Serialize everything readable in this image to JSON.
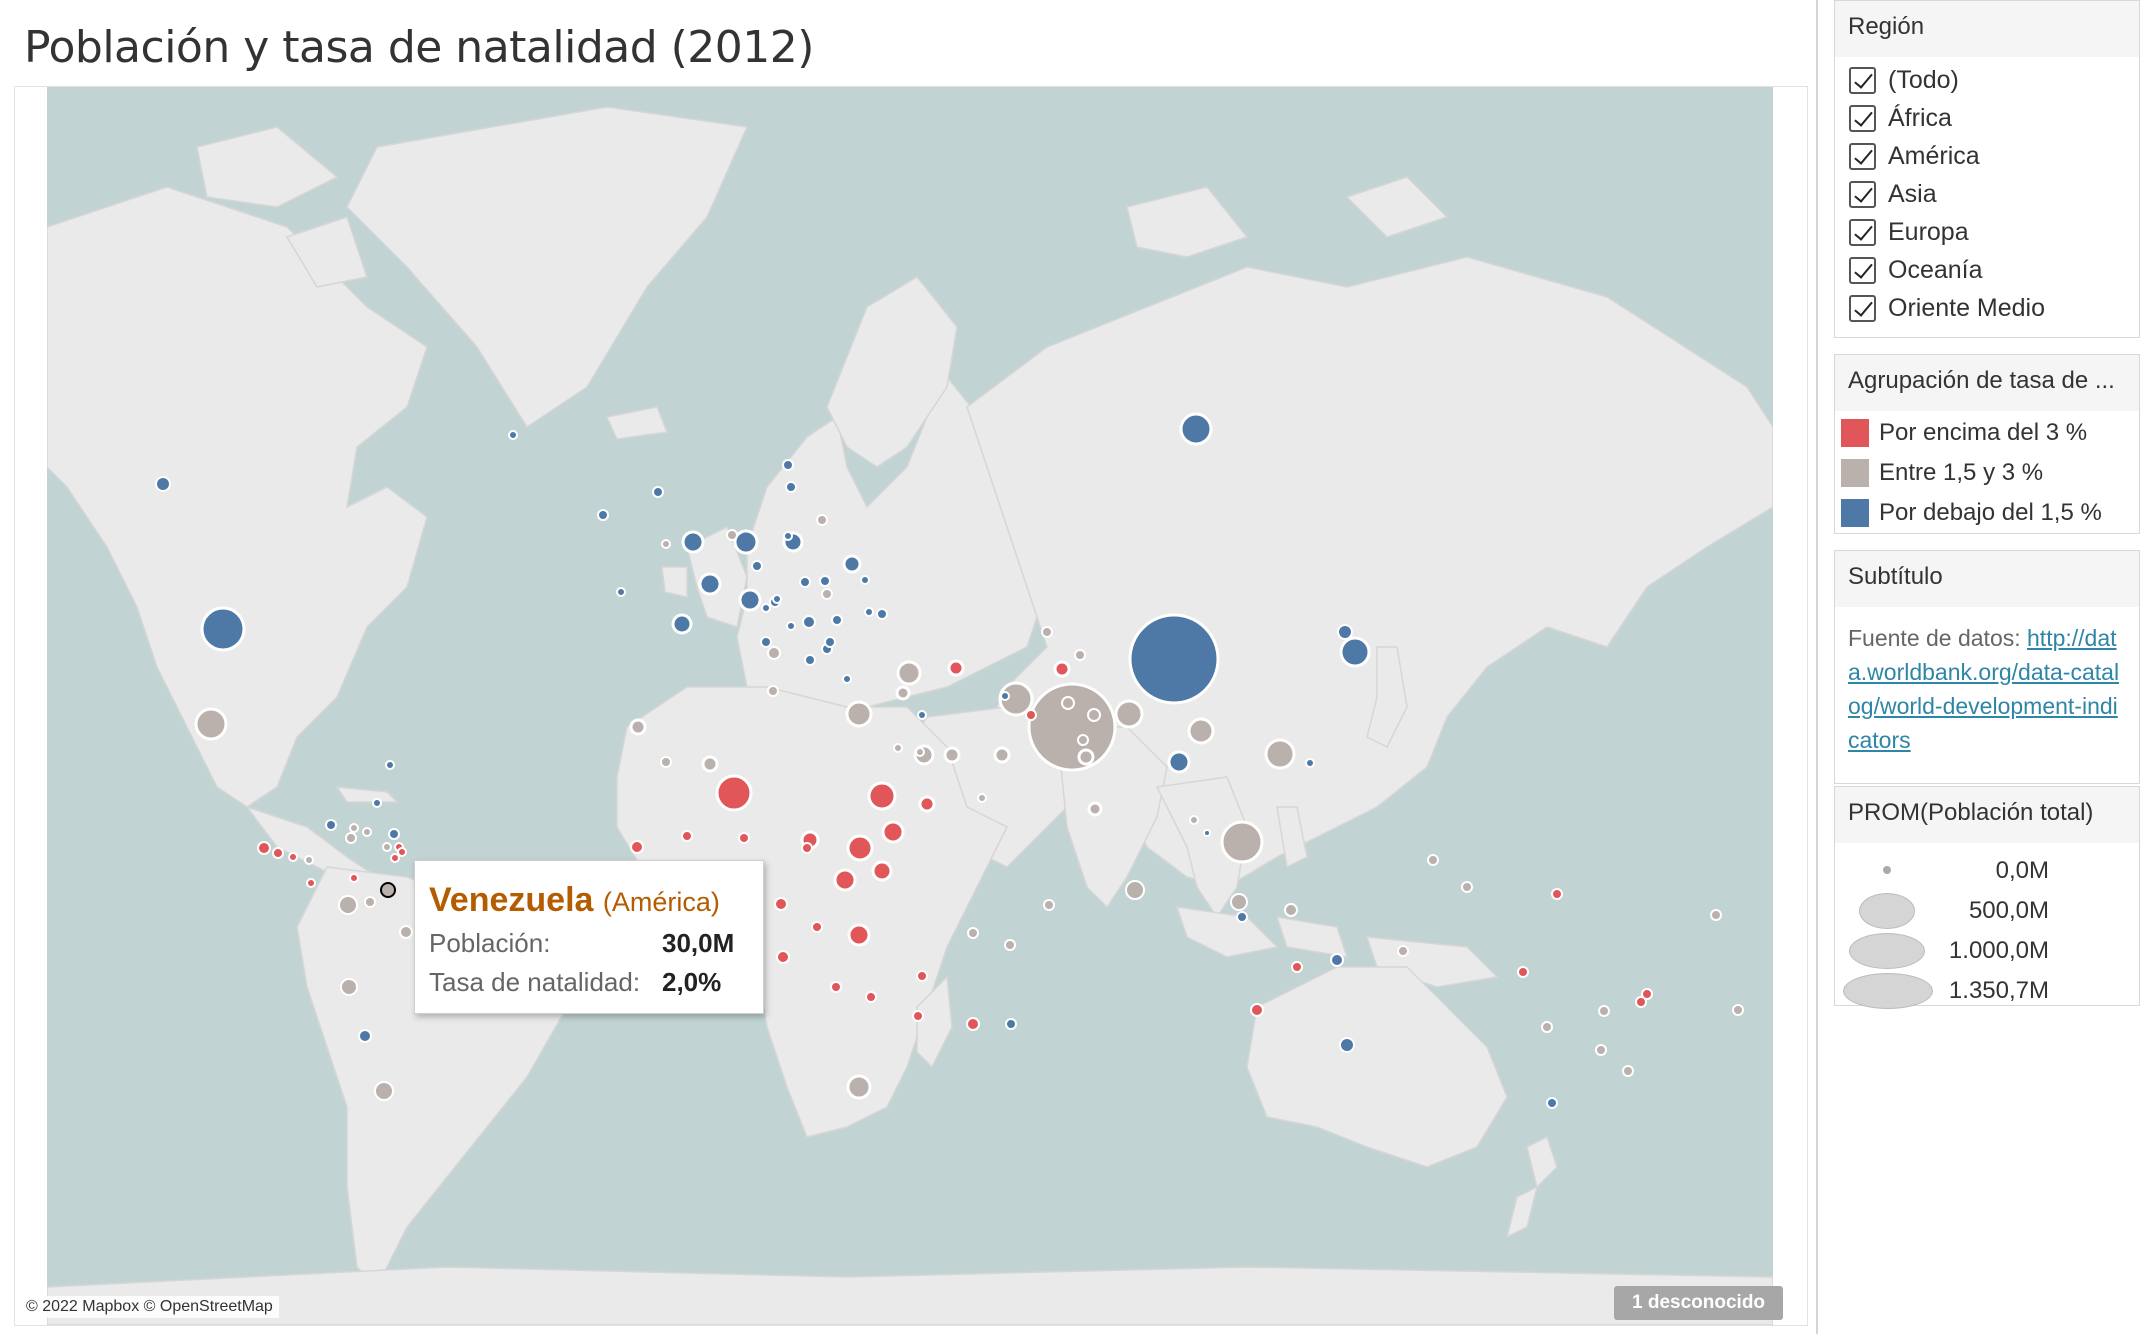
{
  "title": "Población y tasa de natalidad (2012)",
  "map": {
    "attribution": "© 2022 Mapbox © OpenStreetMap",
    "unknown_badge": "1 desconocido",
    "colors": {
      "high": "#e15759",
      "mid": "#bab0ac",
      "low": "#4e79a7",
      "water": "#c1d4d3",
      "land": "#eaeaea"
    }
  },
  "tooltip": {
    "country": "Venezuela",
    "region": "(América)",
    "population_label": "Población:",
    "population_value": "30,0M",
    "birth_rate_label": "Tasa de natalidad:",
    "birth_rate_value": "2,0%"
  },
  "filters": {
    "title": "Región",
    "items": [
      "(Todo)",
      "África",
      "América",
      "Asia",
      "Europa",
      "Oceanía",
      "Oriente Medio"
    ]
  },
  "color_legend": {
    "title": "Agrupación de tasa de ...",
    "items": [
      {
        "label": "Por encima del 3 %",
        "color": "#e15759"
      },
      {
        "label": "Entre 1,5 y 3 %",
        "color": "#bab0ac"
      },
      {
        "label": "Por debajo del 1,5 %",
        "color": "#4e79a7"
      }
    ]
  },
  "subtitle": {
    "title": "Subtítulo",
    "prefix": "Fuente de datos: ",
    "link": "http://data.worldbank.org/data-catalog/world-development-indicators"
  },
  "size_legend": {
    "title": "PROM(Población total)",
    "items": [
      "0,0M",
      "500,0M",
      "1.000,0M",
      "1.350,7M"
    ]
  }
}
